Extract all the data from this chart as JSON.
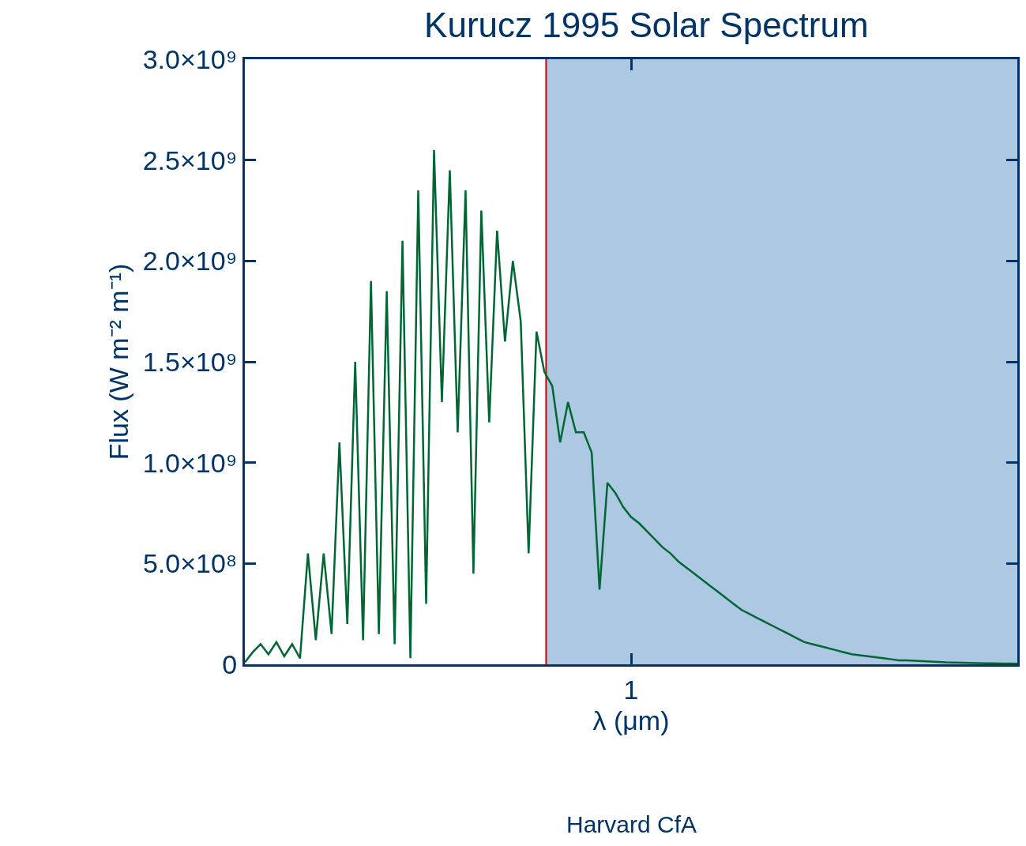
{
  "chart_data": {
    "type": "line",
    "title": "Kurucz 1995 Solar Spectrum",
    "xlabel": "λ (μm)",
    "ylabel": "Flux (W m⁻² m⁻¹)",
    "annotations": [
      "Harvard CfA"
    ],
    "categories": [
      null,
      null,
      null,
      null,
      null,
      null,
      null,
      null,
      null,
      null,
      null,
      null,
      null,
      null,
      null,
      null,
      null,
      null,
      null,
      null,
      null,
      null,
      null,
      null,
      null,
      null,
      null,
      null,
      null,
      null,
      null,
      null,
      null,
      null,
      null,
      null,
      null,
      null,
      null,
      null,
      null,
      null,
      null,
      null,
      null,
      null,
      null,
      null,
      null,
      "1",
      null,
      null,
      null,
      null,
      null,
      null,
      null,
      null,
      null,
      null,
      null,
      null,
      null,
      null,
      null,
      null,
      null,
      null,
      null,
      null,
      null,
      null,
      null,
      null,
      null,
      null,
      null,
      null,
      null,
      null,
      null,
      null,
      null,
      null,
      null,
      null,
      null,
      null,
      null,
      null,
      null,
      null,
      null,
      null,
      null,
      null,
      null,
      null,
      null
    ],
    "series": [
      {
        "color": "#006633",
        "values": [
          10000000.0,
          60000000.0,
          100000000.0,
          50000000.0,
          110000000.0,
          40000000.0,
          100000000.0,
          30000000.0,
          550000000.0,
          120000000.0,
          550000000.0,
          150000000.0,
          1100000000.0,
          200000000.0,
          1500000000.0,
          120000000.0,
          1900000000.0,
          150000000.0,
          1850000000.0,
          100000000.0,
          2100000000.0,
          30000000.0,
          2350000000.0,
          300000000.0,
          2550000000.0,
          1300000000.0,
          2450000000.0,
          1150000000.0,
          2350000000.0,
          450000000.0,
          2250000000.0,
          1200000000.0,
          2150000000.0,
          1600000000.0,
          2000000000.0,
          1700000000.0,
          550000000.0,
          1650000000.0,
          1450000000.0,
          1380000000.0,
          1100000000.0,
          1300000000.0,
          1150000000.0,
          1150000000.0,
          1050000000.0,
          370000000.0,
          900000000.0,
          850000000.0,
          780000000.0,
          730000000.0,
          700000000.0,
          660000000.0,
          620000000.0,
          580000000.0,
          550000000.0,
          510000000.0,
          480000000.0,
          450000000.0,
          420000000.0,
          390000000.0,
          360000000.0,
          330000000.0,
          300000000.0,
          270000000.0,
          250000000.0,
          230000000.0,
          210000000.0,
          190000000.0,
          170000000.0,
          150000000.0,
          130000000.0,
          110000000.0,
          100000000.0,
          90000000.0,
          80000000.0,
          70000000.0,
          60000000.0,
          50000000.0,
          45000000.0,
          40000000.0,
          35000000.0,
          30000000.0,
          25000000.0,
          20000000.0,
          20000000.0,
          18000000.0,
          16000000.0,
          14000000.0,
          12000000.0,
          10000000.0,
          9000000.0,
          8000000.0,
          7000000.0,
          6000000.0,
          5000000.0,
          5000000.0,
          4000000.0,
          4000000.0,
          3000000.0
        ]
      }
    ],
    "ylim": [
      0,
      3000000000.0
    ],
    "yticks": [
      {
        "value": 0,
        "label": "0"
      },
      {
        "value": 500000000.0,
        "label": "5.0×10⁸"
      },
      {
        "value": 1000000000.0,
        "label": "1.0×10⁹"
      },
      {
        "value": 1500000000.0,
        "label": "1.5×10⁹"
      },
      {
        "value": 2000000000.0,
        "label": "2.0×10⁹"
      },
      {
        "value": 2500000000.0,
        "label": "2.5×10⁹"
      },
      {
        "value": 3000000000.0,
        "label": "3.0×10⁹"
      }
    ],
    "grid": false,
    "line_style": "solid",
    "marker": "none"
  }
}
